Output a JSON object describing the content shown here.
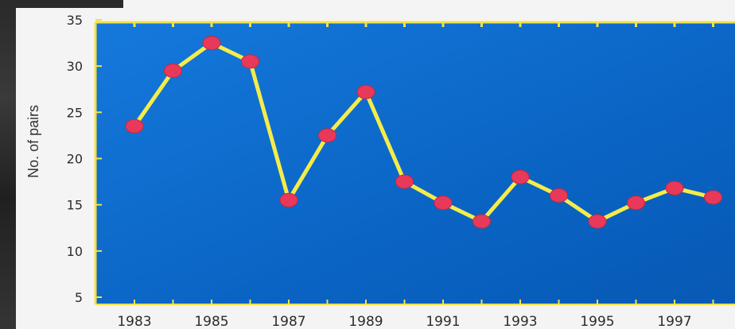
{
  "chart_data": {
    "type": "line",
    "ylabel": "No. of pairs",
    "xlabel": "",
    "ylim": [
      5,
      35
    ],
    "yticks": [
      5,
      10,
      15,
      20,
      25,
      30,
      35
    ],
    "xtick_labels": [
      "1983",
      "1985",
      "1987",
      "1989",
      "1991",
      "1993",
      "1995",
      "1997"
    ],
    "x": [
      1983,
      1984,
      1985,
      1986,
      1987,
      1988,
      1989,
      1990,
      1991,
      1992,
      1993,
      1994,
      1995,
      1996,
      1997,
      1998
    ],
    "series": [
      {
        "values": [
          23.5,
          29.5,
          32.5,
          30.5,
          15.5,
          22.5,
          27.2,
          17.5,
          15.2,
          13.2,
          18.0,
          16.0,
          13.2,
          15.2,
          16.8,
          15.8
        ]
      }
    ],
    "grid": false,
    "colors": {
      "plot_background": "#0a68c8",
      "frame": "#f2e24a",
      "line": "#f5ec4a",
      "marker": "#e8395a"
    }
  }
}
